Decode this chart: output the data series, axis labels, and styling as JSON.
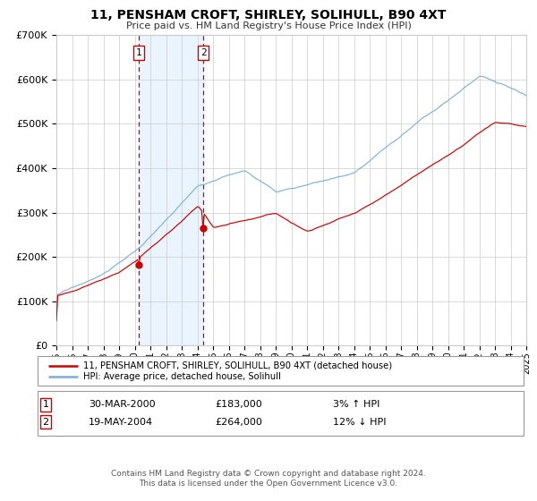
{
  "title": "11, PENSHAM CROFT, SHIRLEY, SOLIHULL, B90 4XT",
  "subtitle": "Price paid vs. HM Land Registry's House Price Index (HPI)",
  "legend_property": "11, PENSHAM CROFT, SHIRLEY, SOLIHULL, B90 4XT (detached house)",
  "legend_hpi": "HPI: Average price, detached house, Solihull",
  "annotation1_date": "30-MAR-2000",
  "annotation1_price": "£183,000",
  "annotation1_hpi": "3% ↑ HPI",
  "annotation2_date": "19-MAY-2004",
  "annotation2_price": "£264,000",
  "annotation2_hpi": "12% ↓ HPI",
  "footer1": "Contains HM Land Registry data © Crown copyright and database right 2024.",
  "footer2": "This data is licensed under the Open Government Licence v3.0.",
  "property_color": "#cc0000",
  "hpi_color": "#7aaed4",
  "background_color": "#ffffff",
  "grid_color": "#cccccc",
  "shade_color": "#ddeeff",
  "vline_color": "#cc0000",
  "point1_year": 2000.25,
  "point1_value": 183000,
  "point2_year": 2004.38,
  "point2_value": 264000,
  "year_start": 1995,
  "year_end": 2025,
  "ylim_max": 700000,
  "yticks": [
    0,
    100000,
    200000,
    300000,
    400000,
    500000,
    600000,
    700000
  ]
}
